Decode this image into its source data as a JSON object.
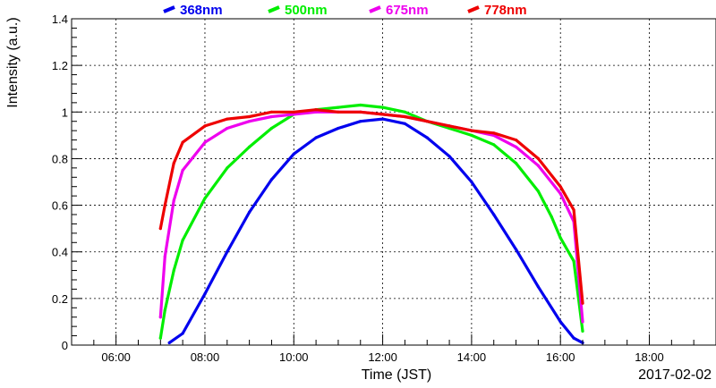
{
  "chart_data": {
    "type": "line",
    "title": "",
    "xlabel": "Time (JST)",
    "ylabel": "Intensity (a.u.)",
    "date_label": "2017-02-02",
    "xlim_hours": [
      5.0,
      19.5
    ],
    "ylim": [
      0,
      1.4
    ],
    "grid": true,
    "legend_position": "top",
    "x_ticks": [
      {
        "hour": 6,
        "label": "06:00"
      },
      {
        "hour": 8,
        "label": "08:00"
      },
      {
        "hour": 10,
        "label": "10:00"
      },
      {
        "hour": 12,
        "label": "12:00"
      },
      {
        "hour": 14,
        "label": "14:00"
      },
      {
        "hour": 16,
        "label": "16:00"
      },
      {
        "hour": 18,
        "label": "18:00"
      }
    ],
    "y_ticks": [
      {
        "value": 0,
        "label": "0"
      },
      {
        "value": 0.2,
        "label": "0.2"
      },
      {
        "value": 0.4,
        "label": "0.4"
      },
      {
        "value": 0.6,
        "label": "0.6"
      },
      {
        "value": 0.8,
        "label": "0.8"
      },
      {
        "value": 1.0,
        "label": "1"
      },
      {
        "value": 1.2,
        "label": "1.2"
      },
      {
        "value": 1.4,
        "label": "1.4"
      }
    ],
    "series": [
      {
        "name": "368nm",
        "color": "#0000ee",
        "x": [
          7.2,
          7.5,
          8.0,
          8.5,
          9.0,
          9.5,
          10.0,
          10.5,
          11.0,
          11.5,
          12.0,
          12.5,
          13.0,
          13.5,
          14.0,
          14.5,
          15.0,
          15.5,
          16.0,
          16.3,
          16.5
        ],
        "y": [
          0.01,
          0.05,
          0.22,
          0.4,
          0.57,
          0.71,
          0.82,
          0.89,
          0.93,
          0.96,
          0.97,
          0.95,
          0.89,
          0.81,
          0.7,
          0.56,
          0.41,
          0.25,
          0.1,
          0.03,
          0.01
        ]
      },
      {
        "name": "500nm",
        "color": "#00ee00",
        "x": [
          7.0,
          7.1,
          7.3,
          7.5,
          8.0,
          8.5,
          9.0,
          9.5,
          10.0,
          10.5,
          11.0,
          11.5,
          12.0,
          12.5,
          13.0,
          13.5,
          14.0,
          14.5,
          15.0,
          15.5,
          15.8,
          16.0,
          16.3,
          16.5
        ],
        "y": [
          0.03,
          0.15,
          0.32,
          0.45,
          0.63,
          0.76,
          0.85,
          0.93,
          0.99,
          1.01,
          1.02,
          1.03,
          1.02,
          1.0,
          0.96,
          0.93,
          0.9,
          0.86,
          0.78,
          0.66,
          0.55,
          0.46,
          0.36,
          0.06
        ]
      },
      {
        "name": "675nm",
        "color": "#ee00ee",
        "x": [
          7.0,
          7.1,
          7.3,
          7.5,
          8.0,
          8.5,
          9.0,
          9.5,
          10.0,
          10.5,
          11.0,
          11.5,
          12.0,
          12.5,
          13.0,
          13.5,
          14.0,
          14.5,
          15.0,
          15.5,
          16.0,
          16.3,
          16.5
        ],
        "y": [
          0.12,
          0.38,
          0.62,
          0.75,
          0.87,
          0.93,
          0.96,
          0.98,
          0.99,
          1.0,
          1.0,
          1.0,
          0.99,
          0.98,
          0.96,
          0.94,
          0.92,
          0.9,
          0.85,
          0.77,
          0.65,
          0.53,
          0.1
        ]
      },
      {
        "name": "778nm",
        "color": "#ee0000",
        "x": [
          7.0,
          7.1,
          7.3,
          7.5,
          8.0,
          8.5,
          9.0,
          9.5,
          10.0,
          10.5,
          11.0,
          11.5,
          12.0,
          12.5,
          13.0,
          13.5,
          14.0,
          14.5,
          15.0,
          15.5,
          16.0,
          16.3,
          16.5
        ],
        "y": [
          0.5,
          0.6,
          0.78,
          0.87,
          0.94,
          0.97,
          0.98,
          1.0,
          1.0,
          1.01,
          1.0,
          1.0,
          0.99,
          0.98,
          0.96,
          0.94,
          0.92,
          0.91,
          0.88,
          0.8,
          0.68,
          0.58,
          0.18
        ]
      }
    ]
  }
}
